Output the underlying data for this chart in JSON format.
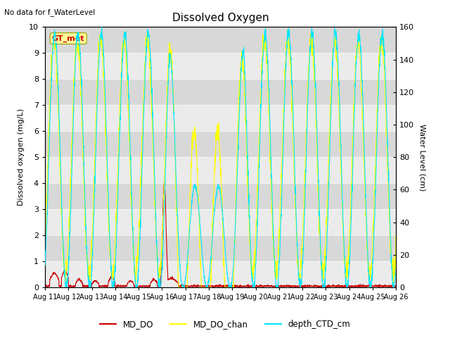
{
  "title": "Dissolved Oxygen",
  "top_left_text": "No data for f_WaterLevel",
  "ylabel_left": "Dissolved oxygen (mg/L)",
  "ylabel_right": "Water Level (cm)",
  "ylim_left": [
    0.0,
    10.0
  ],
  "ylim_right": [
    0,
    160
  ],
  "yticks_left": [
    0.0,
    1.0,
    2.0,
    3.0,
    4.0,
    5.0,
    6.0,
    7.0,
    8.0,
    9.0,
    10.0
  ],
  "yticks_right": [
    0,
    20,
    40,
    60,
    80,
    100,
    120,
    140,
    160
  ],
  "xtick_labels": [
    "Aug 11",
    "Aug 12",
    "Aug 13",
    "Aug 14",
    "Aug 15",
    "Aug 16",
    "Aug 17",
    "Aug 18",
    "Aug 19",
    "Aug 20",
    "Aug 21",
    "Aug 22",
    "Aug 23",
    "Aug 24",
    "Aug 25",
    "Aug 26"
  ],
  "fig_bg_color": "#ffffff",
  "band_light_color": "#ebebeb",
  "band_dark_color": "#d8d8d8",
  "md_do_color": "#cc0000",
  "md_do_chan_color": "#ffff00",
  "depth_ctd_color": "#00e5ff",
  "legend_label_md_do": "MD_DO",
  "legend_label_md_do_chan": "MD_DO_chan",
  "legend_label_depth": "depth_CTD_cm",
  "gt_met_box_color": "#ffff99",
  "gt_met_text_color": "#cc0000",
  "n_points": 2000
}
